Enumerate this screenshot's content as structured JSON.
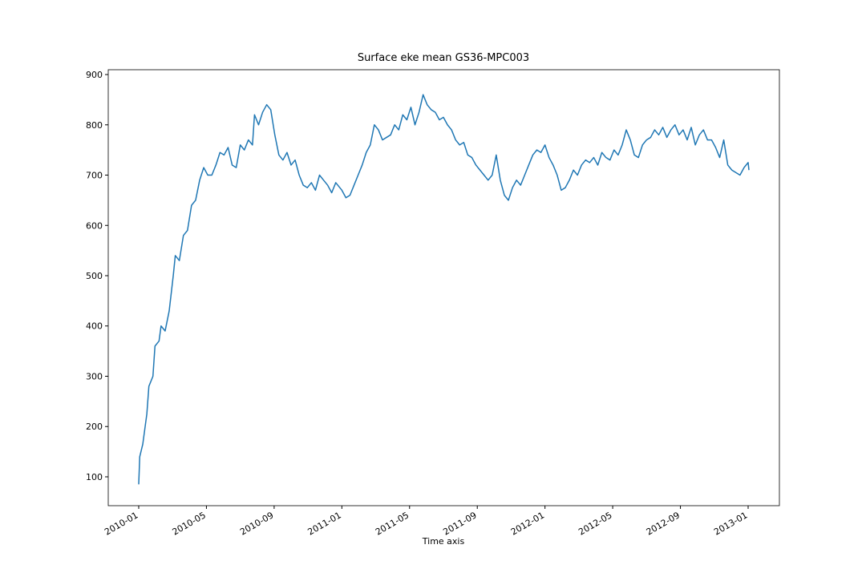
{
  "chart_data": {
    "type": "line",
    "title": "Surface eke mean GS36-MPC003",
    "x_label": "Time axis",
    "series": [
      {
        "color": "#1f77b4",
        "x": [
          2010.0,
          2010.005,
          2010.02,
          2010.04,
          2010.05,
          2010.07,
          2010.08,
          2010.1,
          2010.11,
          2010.13,
          2010.15,
          2010.17,
          2010.18,
          2010.2,
          2010.22,
          2010.24,
          2010.26,
          2010.28,
          2010.3,
          2010.32,
          2010.34,
          2010.36,
          2010.38,
          2010.4,
          2010.42,
          2010.44,
          2010.46,
          2010.48,
          2010.5,
          2010.52,
          2010.54,
          2010.56,
          2010.57,
          2010.59,
          2010.61,
          2010.63,
          2010.65,
          2010.67,
          2010.69,
          2010.71,
          2010.73,
          2010.75,
          2010.77,
          2010.79,
          2010.81,
          2010.83,
          2010.85,
          2010.87,
          2010.89,
          2010.91,
          2010.93,
          2010.95,
          2010.97,
          2011.0,
          2011.02,
          2011.04,
          2011.06,
          2011.08,
          2011.1,
          2011.12,
          2011.14,
          2011.16,
          2011.18,
          2011.2,
          2011.22,
          2011.24,
          2011.26,
          2011.28,
          2011.3,
          2011.32,
          2011.34,
          2011.36,
          2011.38,
          2011.4,
          2011.42,
          2011.44,
          2011.46,
          2011.48,
          2011.5,
          2011.52,
          2011.54,
          2011.56,
          2011.58,
          2011.6,
          2011.62,
          2011.64,
          2011.66,
          2011.68,
          2011.7,
          2011.72,
          2011.74,
          2011.76,
          2011.78,
          2011.8,
          2011.82,
          2011.84,
          2011.86,
          2011.88,
          2011.9,
          2011.92,
          2011.94,
          2011.96,
          2011.98,
          2012.0,
          2012.02,
          2012.04,
          2012.06,
          2012.08,
          2012.1,
          2012.12,
          2012.14,
          2012.16,
          2012.18,
          2012.2,
          2012.22,
          2012.24,
          2012.26,
          2012.28,
          2012.3,
          2012.32,
          2012.34,
          2012.36,
          2012.38,
          2012.4,
          2012.42,
          2012.44,
          2012.46,
          2012.48,
          2012.5,
          2012.52,
          2012.54,
          2012.56,
          2012.58,
          2012.6,
          2012.62,
          2012.64,
          2012.66,
          2012.68,
          2012.7,
          2012.72,
          2012.74,
          2012.76,
          2012.78,
          2012.8,
          2012.82,
          2012.84,
          2012.86,
          2012.88,
          2012.9,
          2012.92,
          2012.94,
          2012.96,
          2012.98,
          2013.0,
          2013.004
        ],
        "values": [
          85,
          140,
          165,
          225,
          280,
          300,
          360,
          370,
          400,
          390,
          430,
          500,
          540,
          530,
          580,
          590,
          640,
          650,
          690,
          715,
          700,
          700,
          720,
          745,
          740,
          755,
          720,
          715,
          760,
          750,
          770,
          760,
          820,
          800,
          825,
          840,
          830,
          780,
          740,
          730,
          745,
          720,
          730,
          700,
          680,
          675,
          685,
          670,
          700,
          690,
          680,
          665,
          685,
          670,
          655,
          660,
          680,
          700,
          720,
          745,
          760,
          800,
          790,
          770,
          775,
          780,
          800,
          790,
          820,
          810,
          835,
          800,
          825,
          860,
          840,
          830,
          825,
          810,
          815,
          800,
          790,
          770,
          760,
          765,
          740,
          735,
          720,
          710,
          700,
          690,
          700,
          740,
          690,
          660,
          650,
          675,
          690,
          680,
          700,
          720,
          740,
          750,
          745,
          760,
          735,
          720,
          700,
          670,
          675,
          690,
          710,
          700,
          720,
          730,
          725,
          735,
          720,
          745,
          735,
          730,
          750,
          740,
          760,
          790,
          770,
          740,
          735,
          760,
          770,
          775,
          790,
          780,
          795,
          775,
          790,
          800,
          780,
          790,
          770,
          795,
          760,
          780,
          790,
          770,
          770,
          755,
          735,
          770,
          720,
          710,
          705,
          700,
          715,
          725,
          710
        ]
      }
    ],
    "xlim": [
      2009.85,
      2013.154
    ],
    "xticks": [
      {
        "value": 2010.0,
        "label": "2010-01"
      },
      {
        "value": 2010.3333,
        "label": "2010-05"
      },
      {
        "value": 2010.6667,
        "label": "2010-09"
      },
      {
        "value": 2011.0,
        "label": "2011-01"
      },
      {
        "value": 2011.3333,
        "label": "2011-05"
      },
      {
        "value": 2011.6667,
        "label": "2011-09"
      },
      {
        "value": 2012.0,
        "label": "2012-01"
      },
      {
        "value": 2012.3333,
        "label": "2012-05"
      },
      {
        "value": 2012.6667,
        "label": "2012-09"
      },
      {
        "value": 2013.0,
        "label": "2013-01"
      }
    ],
    "ylim": [
      42.6,
      909.6
    ],
    "yticks": [
      100,
      200,
      300,
      400,
      500,
      600,
      700,
      800,
      900
    ],
    "grid": false
  }
}
